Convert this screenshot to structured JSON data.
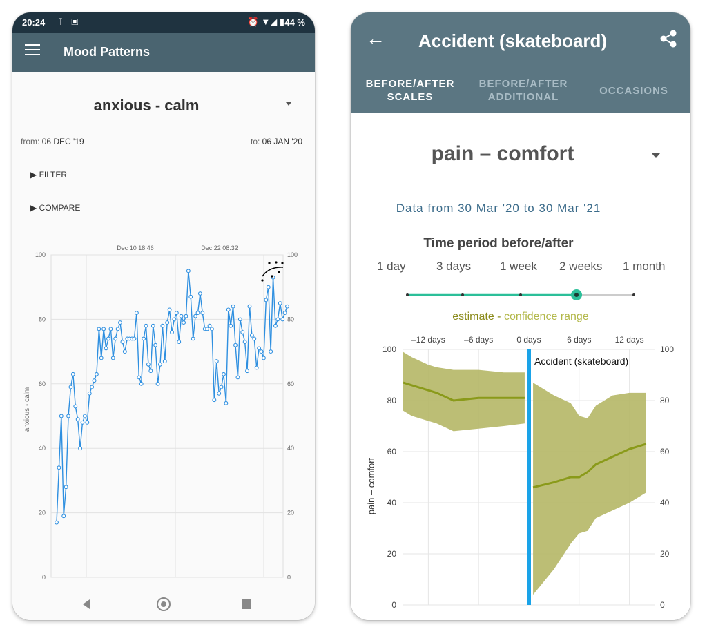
{
  "left": {
    "status": {
      "time": "20:24",
      "left_icons": "⍑ ▣",
      "right_icons": "⏰ ▼◢ ▮",
      "battery": "44 %"
    },
    "appbar": {
      "title": "Mood Patterns"
    },
    "mood_scale": "anxious - calm",
    "from_label": "from:",
    "from_value": "06 DEC '19",
    "to_label": "to:",
    "to_value": "06 JAN '20",
    "filter": "▶ FILTER",
    "compare": "▶ COMPARE",
    "markers": [
      "Dec 10 18:46",
      "Dec 22 08:32"
    ],
    "chart_data": {
      "type": "line",
      "ylabel": "anxious - calm",
      "ylim": [
        0,
        100
      ],
      "yticks": [
        "0",
        "20",
        "40",
        "60",
        "80",
        "100"
      ],
      "values": [
        17,
        34,
        50,
        19,
        28,
        50,
        59,
        63,
        53,
        49,
        40,
        48,
        50,
        48,
        57,
        59,
        61,
        63,
        77,
        68,
        77,
        71,
        74,
        77,
        68,
        74,
        77,
        79,
        73,
        70,
        74,
        74,
        74,
        74,
        82,
        62,
        60,
        74,
        78,
        66,
        64,
        78,
        72,
        60,
        66,
        78,
        67,
        79,
        83,
        76,
        80,
        82,
        73,
        81,
        79,
        81,
        95,
        87,
        74,
        81,
        82,
        88,
        82,
        77,
        77,
        78,
        77,
        55,
        67,
        57,
        59,
        63,
        54,
        83,
        78,
        84,
        72,
        62,
        80,
        76,
        73,
        64,
        84,
        75,
        74,
        65,
        71,
        70,
        68,
        86,
        90,
        70,
        93,
        78,
        80,
        85,
        80,
        82,
        84
      ],
      "color": "#2e8fe0"
    }
  },
  "right": {
    "title": "Accident (skateboard)",
    "tabs": [
      {
        "label1": "BEFORE/AFTER",
        "label2": "SCALES"
      },
      {
        "label1": "BEFORE/AFTER",
        "label2": "ADDITIONAL"
      },
      {
        "label1": "OCCASIONS",
        "label2": ""
      }
    ],
    "scale": "pain – comfort",
    "data_from": "Data from 30 Mar '20 to 30 Mar '21",
    "period_label": "Time period before/after",
    "period_options": [
      "1 day",
      "3 days",
      "1 week",
      "2 weeks",
      "1 month"
    ],
    "period_selected": 3,
    "legend_estimate": "estimate",
    "legend_sep": " - ",
    "legend_confidence": "confidence range",
    "event_label": "Accident (skateboard)",
    "chart_data": {
      "type": "area",
      "ylabel": "pain – comfort",
      "xticks": [
        "–12 days",
        "–6 days",
        "0 days",
        "6 days",
        "12 days"
      ],
      "yticks": [
        "0",
        "20",
        "40",
        "60",
        "80",
        "100"
      ],
      "xlim": [
        -15,
        15
      ],
      "ylim": [
        0,
        100
      ],
      "before": {
        "x": [
          -15,
          -14,
          -12,
          -11,
          -9,
          -6,
          -3,
          -0.5
        ],
        "estimate": [
          87,
          86,
          84,
          83,
          80,
          81,
          81,
          81
        ],
        "upper": [
          99,
          97,
          94,
          93,
          92,
          92,
          91,
          91
        ],
        "lower": [
          76,
          74,
          72,
          71,
          68,
          69,
          70,
          71
        ]
      },
      "after": {
        "x": [
          0.5,
          3,
          5,
          6,
          7,
          8,
          10,
          12,
          14
        ],
        "estimate": [
          46,
          48,
          50,
          50,
          52,
          55,
          58,
          61,
          63
        ],
        "upper": [
          87,
          82,
          79,
          74,
          73,
          78,
          82,
          83,
          83
        ],
        "lower": [
          4,
          14,
          24,
          28,
          29,
          34,
          37,
          40,
          44
        ]
      },
      "colors": {
        "estimate": "#8a9a1a",
        "confidence": "#b5b766",
        "event": "#1aa3e8"
      }
    }
  }
}
